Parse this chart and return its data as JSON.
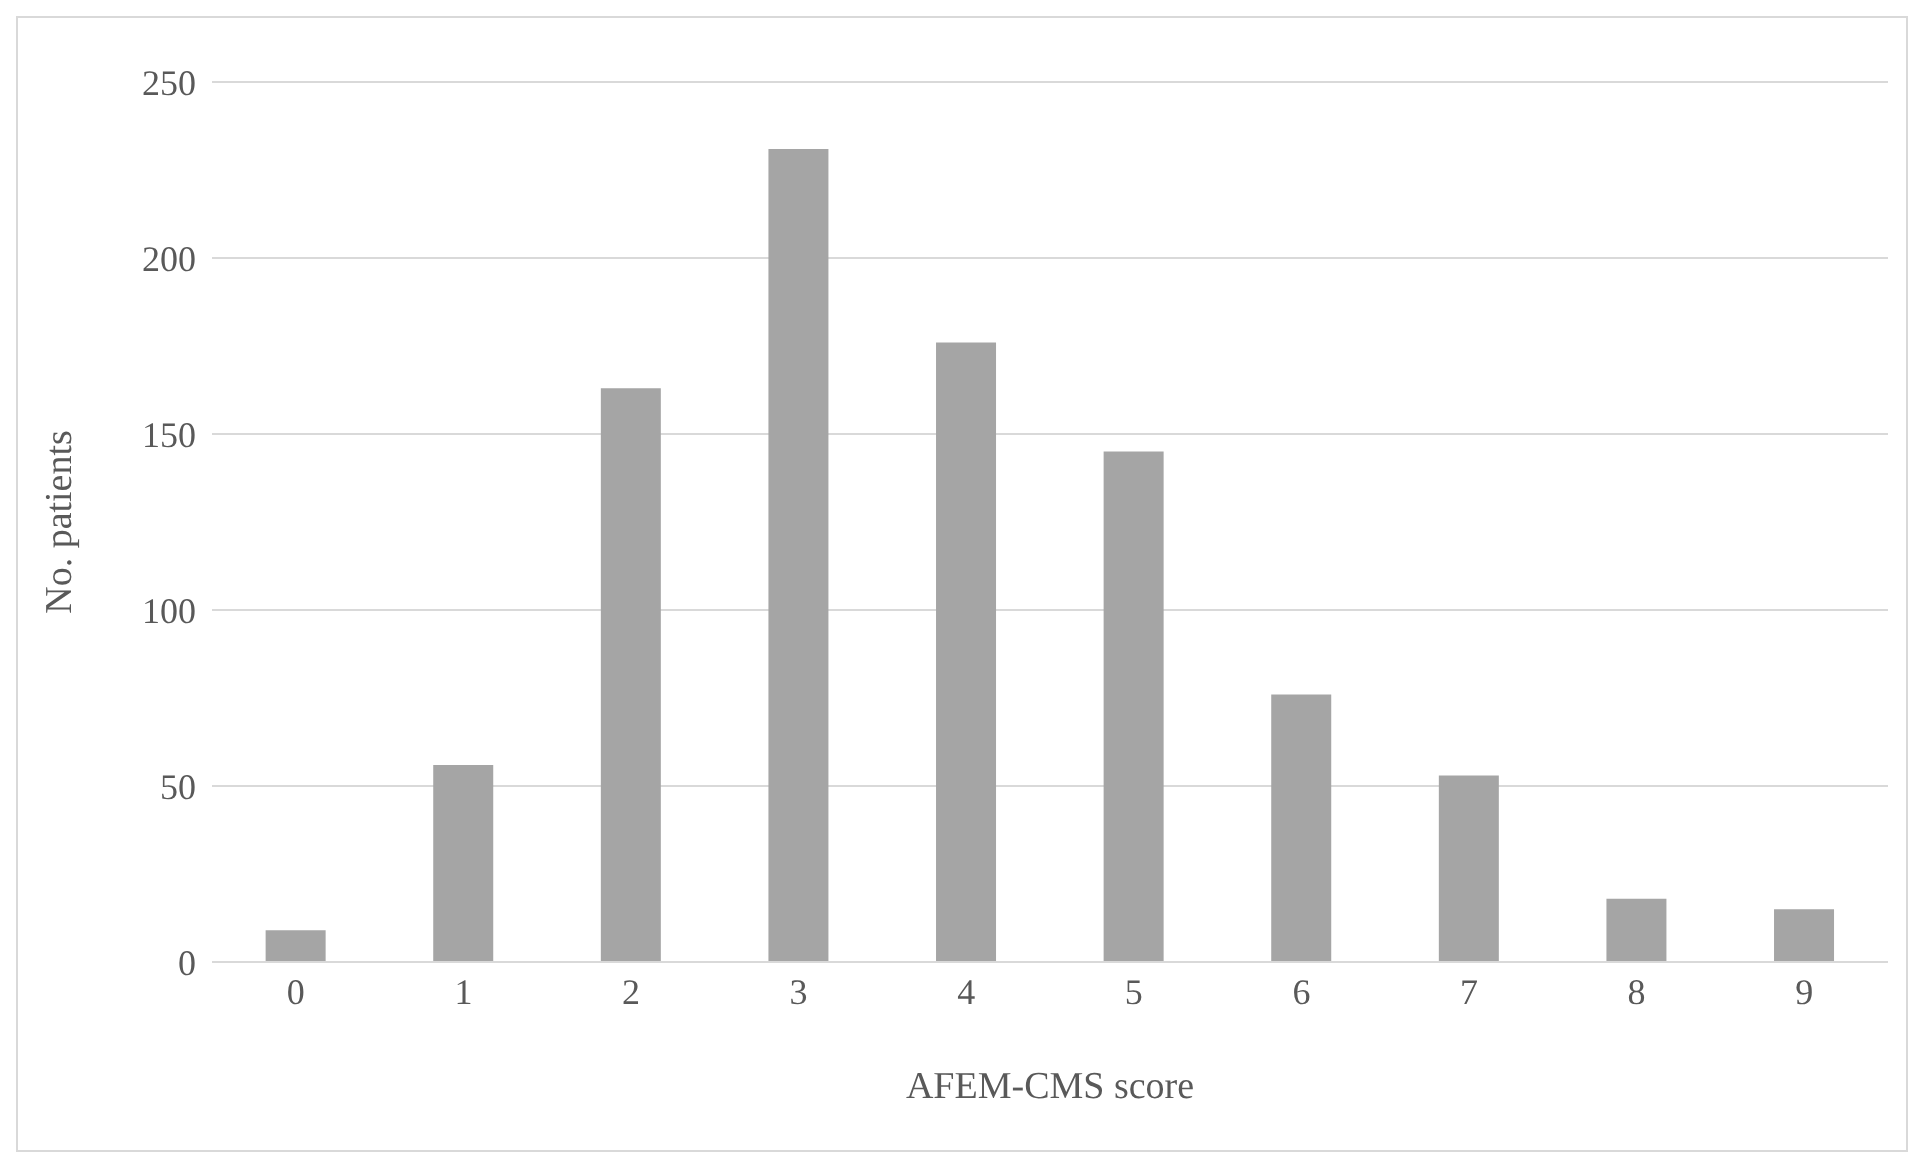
{
  "chart_data": {
    "type": "bar",
    "xlabel": "AFEM-CMS score",
    "ylabel": "No. patients",
    "categories": [
      "0",
      "1",
      "2",
      "3",
      "4",
      "5",
      "6",
      "7",
      "8",
      "9"
    ],
    "values": [
      9,
      56,
      163,
      231,
      176,
      145,
      76,
      53,
      18,
      15
    ],
    "color": "#a5a5a5",
    "ylim": [
      0,
      250
    ],
    "yticks": [
      0,
      50,
      100,
      150,
      200,
      250
    ],
    "grid": "y",
    "legend": false
  }
}
